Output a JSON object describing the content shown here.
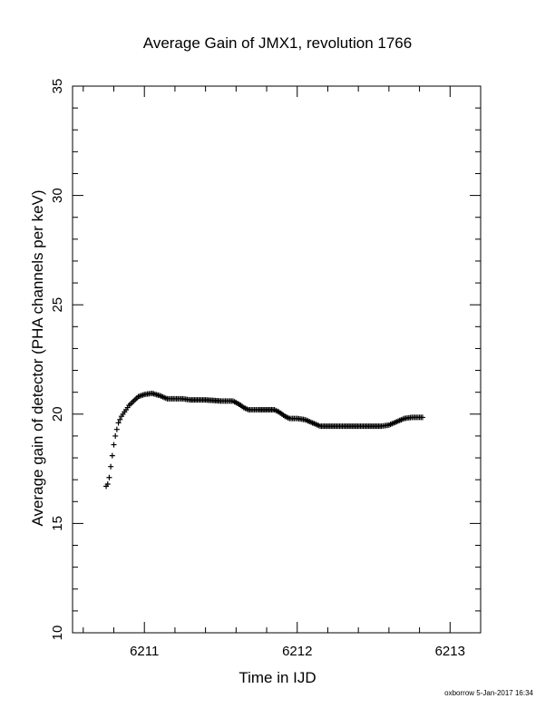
{
  "chart_data": {
    "type": "scatter",
    "title": "Average Gain of JMX1, revolution 1766",
    "xlabel": "Time in IJD",
    "ylabel": "Average gain of detector (PHA channels per keV)",
    "xlim": [
      6210.53,
      6213.2
    ],
    "ylim": [
      10,
      35
    ],
    "xticks": [
      6211,
      6212,
      6213
    ],
    "yticks": [
      10,
      15,
      20,
      25,
      30,
      35
    ],
    "marker": "plus",
    "grid": false,
    "series": [
      {
        "points": [
          [
            6210.75,
            16.7
          ],
          [
            6210.76,
            16.8
          ],
          [
            6210.77,
            17.1
          ],
          [
            6210.78,
            17.6
          ],
          [
            6210.79,
            18.1
          ],
          [
            6210.8,
            18.6
          ],
          [
            6210.81,
            19.0
          ],
          [
            6210.82,
            19.3
          ],
          [
            6210.83,
            19.6
          ],
          [
            6210.85,
            19.9
          ],
          [
            6210.87,
            20.1
          ],
          [
            6210.9,
            20.4
          ],
          [
            6210.93,
            20.6
          ],
          [
            6210.96,
            20.8
          ],
          [
            6211.0,
            20.9
          ],
          [
            6211.05,
            20.95
          ],
          [
            6211.1,
            20.85
          ],
          [
            6211.15,
            20.7
          ],
          [
            6211.2,
            20.7
          ],
          [
            6211.25,
            20.7
          ],
          [
            6211.3,
            20.65
          ],
          [
            6211.4,
            20.65
          ],
          [
            6211.5,
            20.6
          ],
          [
            6211.58,
            20.6
          ],
          [
            6211.62,
            20.45
          ],
          [
            6211.65,
            20.3
          ],
          [
            6211.68,
            20.2
          ],
          [
            6211.75,
            20.2
          ],
          [
            6211.85,
            20.2
          ],
          [
            6211.88,
            20.1
          ],
          [
            6211.92,
            19.9
          ],
          [
            6211.95,
            19.8
          ],
          [
            6212.0,
            19.8
          ],
          [
            6212.05,
            19.75
          ],
          [
            6212.1,
            19.6
          ],
          [
            6212.15,
            19.45
          ],
          [
            6212.25,
            19.45
          ],
          [
            6212.35,
            19.45
          ],
          [
            6212.45,
            19.45
          ],
          [
            6212.55,
            19.45
          ],
          [
            6212.6,
            19.5
          ],
          [
            6212.65,
            19.65
          ],
          [
            6212.7,
            19.8
          ],
          [
            6212.75,
            19.85
          ],
          [
            6212.82,
            19.85
          ]
        ]
      }
    ]
  },
  "footer": "oxborrow  5-Jan-2017 16:34"
}
